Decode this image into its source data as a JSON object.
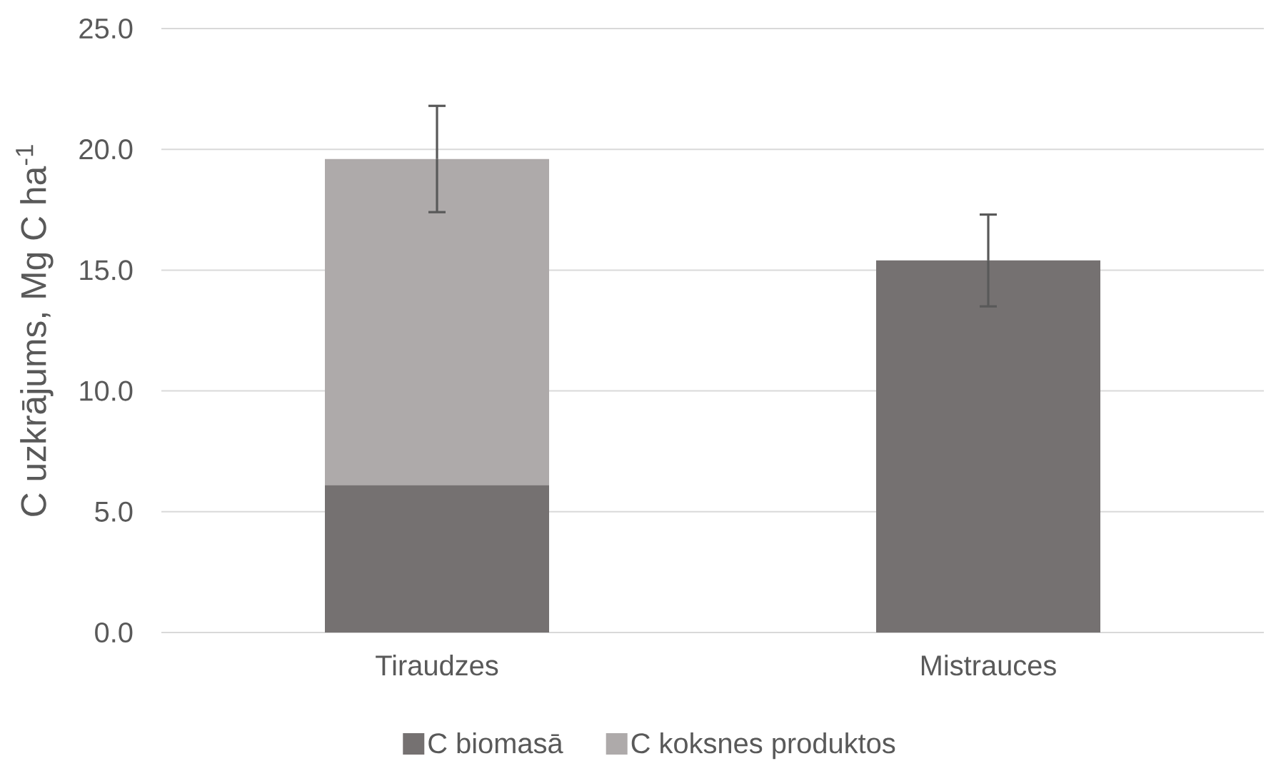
{
  "chart_data": {
    "type": "bar",
    "stacked": true,
    "ylabel": "C uzkrājums, Mg C ha$^{-1}$",
    "categories": [
      "Tiraudzes",
      "Mistrauces"
    ],
    "series": [
      {
        "name": "C biomasā",
        "color": "#757171",
        "values": [
          6.1,
          15.4
        ],
        "errors": [
          null,
          1.9
        ]
      },
      {
        "name": "C koksnes produktos",
        "color": "#AEAAAA",
        "values": [
          13.5,
          null
        ],
        "errors": [
          2.2,
          null
        ]
      }
    ],
    "ylim": [
      0,
      25
    ],
    "yticks": [
      {
        "value": 0,
        "label": "0.0"
      },
      {
        "value": 5,
        "label": "5.0"
      },
      {
        "value": 10,
        "label": "10.0"
      },
      {
        "value": 15,
        "label": "15.0"
      },
      {
        "value": 20,
        "label": "20.0"
      },
      {
        "value": 25,
        "label": "25.0"
      }
    ],
    "grid": "y",
    "legend": "bottom"
  }
}
